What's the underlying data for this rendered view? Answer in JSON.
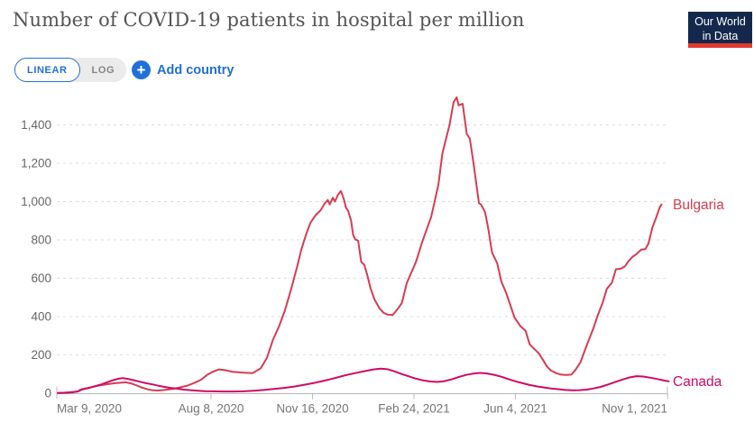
{
  "header": {
    "title": "Number of COVID-19 patients in hospital per million",
    "logo": {
      "line1": "Our World",
      "line2": "in Data"
    }
  },
  "controls": {
    "linear_label": "LINEAR",
    "log_label": "LOG",
    "plus_icon": "+",
    "add_country_label": "Add country"
  },
  "colors": {
    "accent_blue": "#2170d8",
    "logo_bg": "#13284c",
    "logo_stripe": "#e0392e",
    "grid": "#dedede",
    "axis": "#b8b8b8",
    "y_tick_text": "#666666",
    "x_tick_text": "#757575",
    "bulgaria": "#d73c50",
    "canada": "#cf0a66"
  },
  "chart_data": {
    "type": "line",
    "title": "Number of COVID-19 patients in hospital per million",
    "grid": "horizontal-dashed",
    "legend_position": "right-end-labels",
    "x_start": "2020-03-09",
    "x_end": "2021-11-01",
    "ylim": [
      0,
      1550
    ],
    "y_ticks": [
      {
        "v": 0,
        "label": "0"
      },
      {
        "v": 200,
        "label": "200"
      },
      {
        "v": 400,
        "label": "400"
      },
      {
        "v": 600,
        "label": "600"
      },
      {
        "v": 800,
        "label": "800"
      },
      {
        "v": 1000,
        "label": "1,000"
      },
      {
        "v": 1200,
        "label": "1,200"
      },
      {
        "v": 1400,
        "label": "1,400"
      }
    ],
    "x_ticks": [
      {
        "date": "2020-03-09",
        "label": "Mar 9, 2020",
        "align": "start"
      },
      {
        "date": "2020-08-08",
        "label": "Aug 8, 2020",
        "align": "middle"
      },
      {
        "date": "2020-11-16",
        "label": "Nov 16, 2020",
        "align": "middle"
      },
      {
        "date": "2021-02-24",
        "label": "Feb 24, 2021",
        "align": "middle"
      },
      {
        "date": "2021-06-04",
        "label": "Jun 4, 2021",
        "align": "middle"
      },
      {
        "date": "2021-11-01",
        "label": "Nov 1, 2021",
        "align": "end"
      }
    ],
    "series": [
      {
        "name": "Bulgaria",
        "color": "#d73c50",
        "points": [
          [
            "2020-03-10",
            2
          ],
          [
            "2020-03-16",
            3
          ],
          [
            "2020-03-22",
            5
          ],
          [
            "2020-03-29",
            8
          ],
          [
            "2020-04-01",
            14
          ],
          [
            "2020-04-03",
            22
          ],
          [
            "2020-04-08",
            27
          ],
          [
            "2020-04-14",
            34
          ],
          [
            "2020-04-21",
            42
          ],
          [
            "2020-04-28",
            47
          ],
          [
            "2020-05-05",
            52
          ],
          [
            "2020-05-12",
            55
          ],
          [
            "2020-05-16",
            57
          ],
          [
            "2020-05-22",
            50
          ],
          [
            "2020-05-27",
            40
          ],
          [
            "2020-06-01",
            29
          ],
          [
            "2020-06-07",
            20
          ],
          [
            "2020-06-12",
            15
          ],
          [
            "2020-06-17",
            14
          ],
          [
            "2020-06-23",
            17
          ],
          [
            "2020-07-01",
            22
          ],
          [
            "2020-07-09",
            31
          ],
          [
            "2020-07-16",
            40
          ],
          [
            "2020-07-23",
            55
          ],
          [
            "2020-07-29",
            70
          ],
          [
            "2020-08-04",
            95
          ],
          [
            "2020-08-10",
            113
          ],
          [
            "2020-08-16",
            124
          ],
          [
            "2020-08-22",
            120
          ],
          [
            "2020-08-29",
            112
          ],
          [
            "2020-09-08",
            108
          ],
          [
            "2020-09-18",
            105
          ],
          [
            "2020-09-26",
            130
          ],
          [
            "2020-10-02",
            184
          ],
          [
            "2020-10-08",
            278
          ],
          [
            "2020-10-14",
            349
          ],
          [
            "2020-10-20",
            435
          ],
          [
            "2020-10-26",
            545
          ],
          [
            "2020-11-01",
            663
          ],
          [
            "2020-11-05",
            749
          ],
          [
            "2020-11-10",
            835
          ],
          [
            "2020-11-14",
            890
          ],
          [
            "2020-11-19",
            929
          ],
          [
            "2020-11-24",
            955
          ],
          [
            "2020-11-28",
            990
          ],
          [
            "2020-12-01",
            1008
          ],
          [
            "2020-12-03",
            985
          ],
          [
            "2020-12-06",
            1020
          ],
          [
            "2020-12-08",
            1000
          ],
          [
            "2020-12-11",
            1035
          ],
          [
            "2020-12-14",
            1055
          ],
          [
            "2020-12-17",
            1010
          ],
          [
            "2020-12-19",
            968
          ],
          [
            "2020-12-21",
            953
          ],
          [
            "2020-12-24",
            900
          ],
          [
            "2020-12-26",
            827
          ],
          [
            "2020-12-28",
            803
          ],
          [
            "2020-12-31",
            796
          ],
          [
            "2021-01-03",
            685
          ],
          [
            "2021-01-06",
            670
          ],
          [
            "2021-01-09",
            615
          ],
          [
            "2021-01-12",
            552
          ],
          [
            "2021-01-16",
            490
          ],
          [
            "2021-01-21",
            443
          ],
          [
            "2021-01-25",
            420
          ],
          [
            "2021-01-29",
            410
          ],
          [
            "2021-02-03",
            408
          ],
          [
            "2021-02-08",
            440
          ],
          [
            "2021-02-12",
            470
          ],
          [
            "2021-02-17",
            576
          ],
          [
            "2021-02-26",
            686
          ],
          [
            "2021-03-04",
            788
          ],
          [
            "2021-03-13",
            921
          ],
          [
            "2021-03-20",
            1086
          ],
          [
            "2021-03-24",
            1251
          ],
          [
            "2021-03-31",
            1400
          ],
          [
            "2021-04-04",
            1518
          ],
          [
            "2021-04-07",
            1544
          ],
          [
            "2021-04-09",
            1502
          ],
          [
            "2021-04-13",
            1510
          ],
          [
            "2021-04-17",
            1353
          ],
          [
            "2021-04-20",
            1329
          ],
          [
            "2021-04-24",
            1188
          ],
          [
            "2021-04-29",
            992
          ],
          [
            "2021-05-01",
            985
          ],
          [
            "2021-05-05",
            945
          ],
          [
            "2021-05-08",
            866
          ],
          [
            "2021-05-12",
            733
          ],
          [
            "2021-05-17",
            678
          ],
          [
            "2021-05-21",
            584
          ],
          [
            "2021-05-26",
            521
          ],
          [
            "2021-05-30",
            459
          ],
          [
            "2021-06-03",
            396
          ],
          [
            "2021-06-09",
            349
          ],
          [
            "2021-06-14",
            325
          ],
          [
            "2021-06-18",
            255
          ],
          [
            "2021-06-21",
            239
          ],
          [
            "2021-06-27",
            208
          ],
          [
            "2021-07-01",
            175
          ],
          [
            "2021-07-05",
            140
          ],
          [
            "2021-07-09",
            118
          ],
          [
            "2021-07-14",
            105
          ],
          [
            "2021-07-19",
            97
          ],
          [
            "2021-07-24",
            95
          ],
          [
            "2021-07-29",
            97
          ],
          [
            "2021-08-02",
            121
          ],
          [
            "2021-08-07",
            160
          ],
          [
            "2021-08-13",
            247
          ],
          [
            "2021-08-20",
            341
          ],
          [
            "2021-08-24",
            404
          ],
          [
            "2021-08-29",
            474
          ],
          [
            "2021-09-02",
            545
          ],
          [
            "2021-09-07",
            576
          ],
          [
            "2021-09-11",
            647
          ],
          [
            "2021-09-16",
            650
          ],
          [
            "2021-09-20",
            662
          ],
          [
            "2021-09-23",
            686
          ],
          [
            "2021-09-27",
            710
          ],
          [
            "2021-10-01",
            725
          ],
          [
            "2021-10-06",
            749
          ],
          [
            "2021-10-10",
            752
          ],
          [
            "2021-10-13",
            780
          ],
          [
            "2021-10-17",
            866
          ],
          [
            "2021-10-21",
            921
          ],
          [
            "2021-10-24",
            968
          ],
          [
            "2021-10-26",
            985
          ]
        ]
      },
      {
        "name": "Canada",
        "color": "#cf0a66",
        "points": [
          [
            "2020-03-10",
            1
          ],
          [
            "2020-03-17",
            2
          ],
          [
            "2020-03-24",
            4
          ],
          [
            "2020-03-30",
            10
          ],
          [
            "2020-04-01",
            17
          ],
          [
            "2020-04-05",
            22
          ],
          [
            "2020-04-10",
            28
          ],
          [
            "2020-04-16",
            37
          ],
          [
            "2020-04-22",
            46
          ],
          [
            "2020-04-28",
            58
          ],
          [
            "2020-05-04",
            69
          ],
          [
            "2020-05-09",
            76
          ],
          [
            "2020-05-13",
            79
          ],
          [
            "2020-05-18",
            75
          ],
          [
            "2020-05-24",
            68
          ],
          [
            "2020-05-30",
            60
          ],
          [
            "2020-06-05",
            52
          ],
          [
            "2020-06-11",
            46
          ],
          [
            "2020-06-17",
            39
          ],
          [
            "2020-06-23",
            33
          ],
          [
            "2020-06-29",
            28
          ],
          [
            "2020-07-05",
            24
          ],
          [
            "2020-07-12",
            19
          ],
          [
            "2020-07-19",
            16
          ],
          [
            "2020-07-26",
            13
          ],
          [
            "2020-08-02",
            11
          ],
          [
            "2020-08-10",
            10
          ],
          [
            "2020-08-20",
            9
          ],
          [
            "2020-08-30",
            9
          ],
          [
            "2020-09-09",
            10
          ],
          [
            "2020-09-19",
            13
          ],
          [
            "2020-09-29",
            17
          ],
          [
            "2020-10-09",
            22
          ],
          [
            "2020-10-19",
            28
          ],
          [
            "2020-10-29",
            35
          ],
          [
            "2020-11-08",
            44
          ],
          [
            "2020-11-18",
            54
          ],
          [
            "2020-11-28",
            66
          ],
          [
            "2020-12-08",
            79
          ],
          [
            "2020-12-18",
            93
          ],
          [
            "2020-12-28",
            105
          ],
          [
            "2021-01-07",
            116
          ],
          [
            "2021-01-15",
            124
          ],
          [
            "2021-01-22",
            128
          ],
          [
            "2021-01-29",
            125
          ],
          [
            "2021-02-05",
            114
          ],
          [
            "2021-02-12",
            100
          ],
          [
            "2021-02-19",
            88
          ],
          [
            "2021-02-26",
            76
          ],
          [
            "2021-03-05",
            67
          ],
          [
            "2021-03-12",
            61
          ],
          [
            "2021-03-19",
            59
          ],
          [
            "2021-03-26",
            63
          ],
          [
            "2021-04-02",
            72
          ],
          [
            "2021-04-09",
            84
          ],
          [
            "2021-04-16",
            95
          ],
          [
            "2021-04-23",
            102
          ],
          [
            "2021-04-30",
            106
          ],
          [
            "2021-05-07",
            103
          ],
          [
            "2021-05-14",
            96
          ],
          [
            "2021-05-21",
            86
          ],
          [
            "2021-05-28",
            74
          ],
          [
            "2021-06-04",
            62
          ],
          [
            "2021-06-11",
            52
          ],
          [
            "2021-06-18",
            43
          ],
          [
            "2021-06-25",
            36
          ],
          [
            "2021-07-02",
            30
          ],
          [
            "2021-07-09",
            25
          ],
          [
            "2021-07-16",
            21
          ],
          [
            "2021-07-23",
            17
          ],
          [
            "2021-07-30",
            15
          ],
          [
            "2021-08-06",
            16
          ],
          [
            "2021-08-13",
            19
          ],
          [
            "2021-08-20",
            25
          ],
          [
            "2021-08-27",
            33
          ],
          [
            "2021-09-03",
            45
          ],
          [
            "2021-09-10",
            58
          ],
          [
            "2021-09-17",
            70
          ],
          [
            "2021-09-24",
            82
          ],
          [
            "2021-10-01",
            89
          ],
          [
            "2021-10-08",
            87
          ],
          [
            "2021-10-15",
            81
          ],
          [
            "2021-10-22",
            74
          ],
          [
            "2021-10-29",
            66
          ],
          [
            "2021-11-02",
            62
          ]
        ]
      }
    ]
  }
}
